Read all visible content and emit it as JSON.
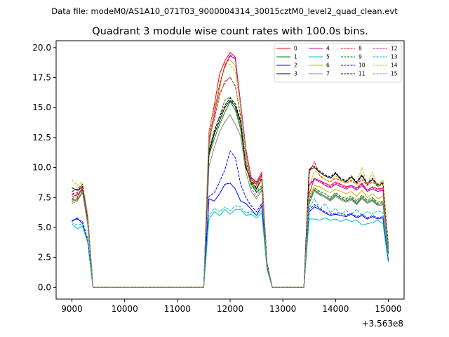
{
  "header": {
    "data_file": "Data file: modeM0/AS1A10_071T03_9000004314_30015cztM0_level2_quad_clean.evt"
  },
  "chart_data": {
    "type": "line",
    "title": "Quadrant 3 module wise count rates with 100.0s bins.",
    "xlabel": "",
    "ylabel": "",
    "x_offset_label": "+3.563e8",
    "xlim": [
      8700,
      15300
    ],
    "ylim": [
      -0.98,
      20.58
    ],
    "xticks": [
      9000,
      10000,
      11000,
      12000,
      13000,
      14000,
      15000
    ],
    "yticks": [
      0.0,
      2.5,
      5.0,
      7.5,
      10.0,
      12.5,
      15.0,
      17.5,
      20.0
    ],
    "xtick_labels": [
      "9000",
      "10000",
      "11000",
      "12000",
      "13000",
      "14000",
      "15000"
    ],
    "ytick_labels": [
      "0.0",
      "2.5",
      "5.0",
      "7.5",
      "10.0",
      "12.5",
      "15.0",
      "17.5",
      "20.0"
    ],
    "grid": false,
    "legend_position": "top-right",
    "legend_columns": 4,
    "x": [
      9000,
      9100,
      9200,
      9300,
      9400,
      9500,
      9600,
      9700,
      9800,
      9900,
      10000,
      10100,
      10200,
      10300,
      10400,
      10500,
      10600,
      10700,
      10800,
      10900,
      11000,
      11100,
      11200,
      11300,
      11400,
      11500,
      11600,
      11700,
      11800,
      11900,
      12000,
      12100,
      12200,
      12300,
      12400,
      12500,
      12600,
      12700,
      12800,
      12900,
      13000,
      13100,
      13200,
      13300,
      13400,
      13500,
      13600,
      13700,
      13800,
      13900,
      14000,
      14100,
      14200,
      14300,
      14400,
      14500,
      14600,
      14700,
      14800,
      14900,
      15000
    ],
    "series": [
      {
        "name": "0",
        "color": "#ff0000",
        "dash": "solid",
        "values": [
          7.3,
          7.4,
          8.4,
          5.6,
          0,
          0,
          0,
          0,
          0,
          0,
          0,
          0,
          0,
          0,
          0,
          0,
          0,
          0,
          0,
          0,
          0,
          0,
          0,
          0,
          0,
          0,
          13.0,
          15.2,
          17.8,
          18.9,
          19.6,
          19.2,
          15.0,
          11.3,
          9.2,
          8.8,
          9.6,
          2.0,
          0,
          0,
          0,
          0,
          0,
          0,
          0,
          7.8,
          9.1,
          8.9,
          8.7,
          8.5,
          8.8,
          8.6,
          8.4,
          8.5,
          8.3,
          8.7,
          8.1,
          8.4,
          8.2,
          8.3,
          3.2
        ]
      },
      {
        "name": "1",
        "color": "#008000",
        "dash": "solid",
        "values": [
          7.2,
          7.3,
          8.0,
          5.3,
          0,
          0,
          0,
          0,
          0,
          0,
          0,
          0,
          0,
          0,
          0,
          0,
          0,
          0,
          0,
          0,
          0,
          0,
          0,
          0,
          0,
          0,
          11.0,
          12.4,
          13.6,
          14.6,
          15.5,
          14.8,
          13.2,
          10.1,
          8.6,
          7.9,
          8.3,
          1.8,
          0,
          0,
          0,
          0,
          0,
          0,
          0,
          7.0,
          8.1,
          7.8,
          7.6,
          7.3,
          7.7,
          7.4,
          7.2,
          7.4,
          7.0,
          7.5,
          7.1,
          7.3,
          6.9,
          7.0,
          2.8
        ]
      },
      {
        "name": "2",
        "color": "#0000ff",
        "dash": "solid",
        "values": [
          5.5,
          5.8,
          5.3,
          3.8,
          0,
          0,
          0,
          0,
          0,
          0,
          0,
          0,
          0,
          0,
          0,
          0,
          0,
          0,
          0,
          0,
          0,
          0,
          0,
          0,
          0,
          0,
          7.4,
          7.2,
          7.8,
          8.6,
          8.7,
          8.2,
          7.2,
          7.0,
          6.5,
          6.0,
          6.8,
          1.6,
          0,
          0,
          0,
          0,
          0,
          0,
          0,
          6.3,
          6.7,
          6.5,
          6.2,
          6.0,
          6.1,
          6.0,
          5.9,
          6.1,
          5.8,
          6.0,
          5.7,
          5.9,
          5.7,
          5.8,
          2.2
        ]
      },
      {
        "name": "3",
        "color": "#000000",
        "dash": "solid",
        "values": [
          8.3,
          8.1,
          8.4,
          5.9,
          0,
          0,
          0,
          0,
          0,
          0,
          0,
          0,
          0,
          0,
          0,
          0,
          0,
          0,
          0,
          0,
          0,
          0,
          0,
          0,
          0,
          0,
          11.2,
          12.8,
          13.9,
          15.0,
          15.6,
          15.1,
          13.8,
          10.0,
          8.8,
          8.2,
          9.0,
          2.0,
          0,
          0,
          0,
          0,
          0,
          0,
          0,
          9.8,
          10.0,
          9.6,
          9.3,
          9.1,
          9.5,
          9.0,
          8.8,
          9.2,
          8.7,
          9.3,
          8.6,
          9.0,
          8.5,
          8.7,
          3.4
        ]
      },
      {
        "name": "4",
        "color": "#c000c0",
        "dash": "solid",
        "values": [
          7.6,
          7.7,
          8.1,
          5.6,
          0,
          0,
          0,
          0,
          0,
          0,
          0,
          0,
          0,
          0,
          0,
          0,
          0,
          0,
          0,
          0,
          0,
          0,
          0,
          0,
          0,
          0,
          12.1,
          14.3,
          16.8,
          18.4,
          19.3,
          19.1,
          15.3,
          11.5,
          9.0,
          8.6,
          9.3,
          1.9,
          0,
          0,
          0,
          0,
          0,
          0,
          0,
          8.5,
          9.0,
          8.8,
          8.5,
          8.3,
          8.6,
          8.4,
          8.2,
          8.4,
          8.1,
          8.5,
          8.0,
          8.2,
          8.0,
          8.1,
          3.1
        ]
      },
      {
        "name": "5",
        "color": "#00bfbf",
        "dash": "solid",
        "values": [
          5.3,
          4.9,
          5.1,
          3.7,
          0,
          0,
          0,
          0,
          0,
          0,
          0,
          0,
          0,
          0,
          0,
          0,
          0,
          0,
          0,
          0,
          0,
          0,
          0,
          0,
          0,
          0,
          5.7,
          6.3,
          6.0,
          6.5,
          6.1,
          6.5,
          6.5,
          6.0,
          6.1,
          5.8,
          6.2,
          1.5,
          0,
          0,
          0,
          0,
          0,
          0,
          0,
          5.7,
          5.7,
          5.6,
          5.8,
          5.6,
          5.7,
          5.5,
          5.7,
          5.5,
          5.6,
          5.2,
          5.3,
          5.4,
          5.6,
          5.3,
          2.1
        ]
      },
      {
        "name": "6",
        "color": "#bfbf00",
        "dash": "solid",
        "values": [
          7.1,
          7.5,
          8.2,
          5.4,
          0,
          0,
          0,
          0,
          0,
          0,
          0,
          0,
          0,
          0,
          0,
          0,
          0,
          0,
          0,
          0,
          0,
          0,
          0,
          0,
          0,
          0,
          11.8,
          14.5,
          16.5,
          18.7,
          19.0,
          18.5,
          15.1,
          11.0,
          8.7,
          8.3,
          9.0,
          1.9,
          0,
          0,
          0,
          0,
          0,
          0,
          0,
          7.6,
          8.5,
          8.4,
          8.1,
          7.9,
          8.2,
          8.0,
          7.8,
          8.0,
          7.6,
          8.1,
          7.5,
          7.8,
          7.4,
          7.6,
          3.0
        ]
      },
      {
        "name": "7",
        "color": "#808080",
        "dash": "solid",
        "values": [
          7.0,
          7.2,
          7.9,
          5.2,
          0,
          0,
          0,
          0,
          0,
          0,
          0,
          0,
          0,
          0,
          0,
          0,
          0,
          0,
          0,
          0,
          0,
          0,
          0,
          0,
          0,
          0,
          10.1,
          11.7,
          13.0,
          13.8,
          14.4,
          13.6,
          12.6,
          9.6,
          8.0,
          7.4,
          8.1,
          1.7,
          0,
          0,
          0,
          0,
          0,
          0,
          0,
          7.5,
          8.0,
          7.7,
          7.5,
          7.2,
          7.6,
          7.3,
          7.1,
          7.3,
          6.9,
          7.4,
          7.0,
          7.2,
          6.8,
          6.9,
          2.9
        ]
      },
      {
        "name": "8",
        "color": "#ff0000",
        "dash": "dashed",
        "values": [
          7.8,
          7.9,
          8.5,
          5.8,
          0,
          0,
          0,
          0,
          0,
          0,
          0,
          0,
          0,
          0,
          0,
          0,
          0,
          0,
          0,
          0,
          0,
          0,
          0,
          0,
          0,
          0,
          12.5,
          14.0,
          16.0,
          17.2,
          17.5,
          16.8,
          14.2,
          10.5,
          9.0,
          8.5,
          9.4,
          1.9,
          0,
          0,
          0,
          0,
          0,
          0,
          0,
          9.5,
          10.5,
          9.3,
          9.0,
          8.8,
          9.1,
          8.9,
          8.7,
          8.9,
          8.6,
          9.0,
          8.5,
          8.8,
          8.4,
          8.6,
          3.3
        ]
      },
      {
        "name": "9",
        "color": "#008000",
        "dash": "dashed",
        "values": [
          7.4,
          7.6,
          8.2,
          5.5,
          0,
          0,
          0,
          0,
          0,
          0,
          0,
          0,
          0,
          0,
          0,
          0,
          0,
          0,
          0,
          0,
          0,
          0,
          0,
          0,
          0,
          0,
          11.4,
          13.0,
          14.3,
          15.6,
          15.9,
          15.0,
          13.5,
          10.2,
          8.7,
          8.0,
          8.5,
          1.8,
          0,
          0,
          0,
          0,
          0,
          0,
          0,
          7.2,
          8.3,
          8.0,
          7.8,
          7.5,
          7.9,
          7.6,
          7.4,
          7.6,
          7.2,
          7.7,
          7.3,
          7.5,
          7.1,
          7.2,
          2.9
        ]
      },
      {
        "name": "10",
        "color": "#0000ff",
        "dash": "dashed",
        "values": [
          5.6,
          5.7,
          5.5,
          4.0,
          0,
          0,
          0,
          0,
          0,
          0,
          0,
          0,
          0,
          0,
          0,
          0,
          0,
          0,
          0,
          0,
          0,
          0,
          0,
          0,
          0,
          0,
          7.6,
          7.9,
          8.8,
          9.8,
          11.4,
          10.8,
          8.6,
          7.5,
          6.8,
          6.3,
          7.0,
          1.6,
          0,
          0,
          0,
          0,
          0,
          0,
          0,
          6.5,
          6.9,
          6.6,
          6.3,
          6.1,
          6.2,
          6.2,
          6.0,
          6.2,
          5.9,
          6.1,
          5.8,
          6.0,
          5.8,
          5.9,
          2.3
        ]
      },
      {
        "name": "11",
        "color": "#000000",
        "dash": "dashed",
        "values": [
          8.0,
          8.2,
          8.6,
          6.0,
          0,
          0,
          0,
          0,
          0,
          0,
          0,
          0,
          0,
          0,
          0,
          0,
          0,
          0,
          0,
          0,
          0,
          0,
          0,
          0,
          0,
          0,
          11.5,
          13.1,
          14.2,
          15.2,
          15.8,
          15.3,
          13.9,
          10.1,
          8.9,
          8.3,
          9.1,
          2.0,
          0,
          0,
          0,
          0,
          0,
          0,
          0,
          9.9,
          10.1,
          9.7,
          9.4,
          9.2,
          9.6,
          9.1,
          8.9,
          9.3,
          8.8,
          9.4,
          8.7,
          9.1,
          8.6,
          8.8,
          3.5
        ]
      },
      {
        "name": "12",
        "color": "#c000c0",
        "dash": "dashed",
        "values": [
          7.7,
          7.8,
          8.2,
          5.7,
          0,
          0,
          0,
          0,
          0,
          0,
          0,
          0,
          0,
          0,
          0,
          0,
          0,
          0,
          0,
          0,
          0,
          0,
          0,
          0,
          0,
          0,
          12.3,
          14.6,
          17.0,
          18.5,
          19.4,
          19.0,
          15.4,
          11.6,
          9.1,
          8.7,
          9.4,
          1.9,
          0,
          0,
          0,
          0,
          0,
          0,
          0,
          8.6,
          9.1,
          8.9,
          8.6,
          8.4,
          8.7,
          8.5,
          8.3,
          8.5,
          8.2,
          8.6,
          8.1,
          8.3,
          8.1,
          8.2,
          3.2
        ]
      },
      {
        "name": "13",
        "color": "#00bfbf",
        "dash": "dashed",
        "values": [
          5.4,
          5.2,
          5.3,
          3.8,
          0,
          0,
          0,
          0,
          0,
          0,
          0,
          0,
          0,
          0,
          0,
          0,
          0,
          0,
          0,
          0,
          0,
          0,
          0,
          0,
          0,
          0,
          6.0,
          6.6,
          6.3,
          6.7,
          6.4,
          6.8,
          6.7,
          6.2,
          6.3,
          6.0,
          6.4,
          1.6,
          0,
          0,
          0,
          0,
          0,
          0,
          0,
          6.6,
          7.4,
          6.5,
          7.0,
          6.2,
          6.6,
          6.0,
          6.4,
          6.1,
          6.5,
          6.0,
          6.3,
          6.1,
          6.4,
          6.2,
          2.4
        ]
      },
      {
        "name": "14",
        "color": "#bfbf00",
        "dash": "dashed",
        "values": [
          9.0,
          8.5,
          8.8,
          6.0,
          0,
          0,
          0,
          0,
          0,
          0,
          0,
          0,
          0,
          0,
          0,
          0,
          0,
          0,
          0,
          0,
          0,
          0,
          0,
          0,
          0,
          0,
          13.1,
          14.9,
          16.7,
          18.4,
          18.6,
          17.9,
          15.0,
          11.2,
          8.9,
          8.5,
          9.2,
          1.9,
          0,
          0,
          0,
          0,
          0,
          0,
          0,
          8.5,
          9.7,
          9.4,
          9.0,
          8.8,
          9.3,
          9.0,
          8.7,
          9.0,
          8.6,
          10.0,
          8.6,
          9.6,
          8.4,
          9.0,
          3.3
        ]
      },
      {
        "name": "15",
        "color": "#808080",
        "dash": "dashed",
        "values": [
          7.2,
          7.3,
          8.0,
          5.3,
          0,
          0,
          0,
          0,
          0,
          0,
          0,
          0,
          0,
          0,
          0,
          0,
          0,
          0,
          0,
          0,
          0,
          0,
          0,
          0,
          0,
          0,
          12.9,
          14.4,
          16.2,
          17.0,
          17.6,
          16.7,
          14.4,
          10.4,
          8.3,
          7.6,
          8.3,
          1.8,
          0,
          0,
          0,
          0,
          0,
          0,
          0,
          7.7,
          8.2,
          7.9,
          7.6,
          7.4,
          7.8,
          7.5,
          7.3,
          7.5,
          7.1,
          7.6,
          7.2,
          7.4,
          7.0,
          7.1,
          3.0
        ]
      }
    ]
  }
}
